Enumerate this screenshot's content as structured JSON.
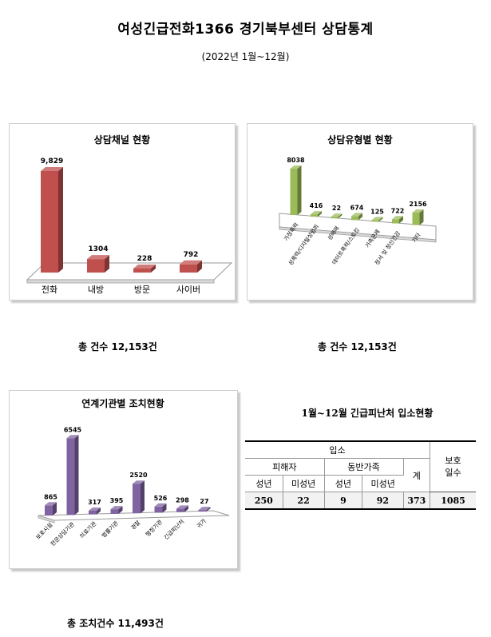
{
  "doc": {
    "title": "여성긴급전화1366 경기북부센터 상담통계",
    "subtitle": "(2022년 1월~12월)"
  },
  "chart_data": [
    {
      "type": "bar",
      "title": "상담채널 현황",
      "categories": [
        "전화",
        "내방",
        "방문",
        "사이버"
      ],
      "values": [
        9829,
        1304,
        228,
        792
      ],
      "value_labels": [
        "9,829",
        "1304",
        "228",
        "792"
      ],
      "color": "#c0504d",
      "total_label": "총  건수  12,153건"
    },
    {
      "type": "bar",
      "title": "상담유형별 현황",
      "categories": [
        "가정폭력",
        "성폭력/디지털성범죄",
        "성매매",
        "데이트폭력/스토킹",
        "가족문제",
        "정서 및 정신건강",
        "기타"
      ],
      "values": [
        8038,
        416,
        22,
        674,
        125,
        722,
        2156
      ],
      "value_labels": [
        "8038",
        "416",
        "22",
        "674",
        "125",
        "722",
        "2156"
      ],
      "color": "#9bbb59",
      "total_label": "총  건수  12,153건"
    },
    {
      "type": "bar",
      "title": "연계기관별 조치현황",
      "categories": [
        "보호시설",
        "전문상담기관",
        "의료기관",
        "법률기관",
        "경찰",
        "행정기관",
        "긴급피난처",
        "귀가"
      ],
      "values": [
        865,
        6545,
        317,
        395,
        2520,
        526,
        298,
        27
      ],
      "value_labels": [
        "865",
        "6545",
        "317",
        "395",
        "2520",
        "526",
        "298",
        "27"
      ],
      "color": "#8064a2",
      "total_label": "총  조치건수    11,493건"
    }
  ],
  "shelter": {
    "title": "1월~12월  긴급피난처  입소현황",
    "h_admission": "입소",
    "h_victim": "피해자",
    "h_companion": "동반가족",
    "h_total": "계",
    "h_protect_days": "보호\n일수",
    "h_adult": "성년",
    "h_minor": "미성년",
    "h_adult2": "성년",
    "h_minor2": "미성년",
    "victim_adult": "250",
    "victim_minor": "22",
    "companion_adult": "9",
    "companion_minor": "92",
    "total": "373",
    "protect_days": "1085"
  }
}
